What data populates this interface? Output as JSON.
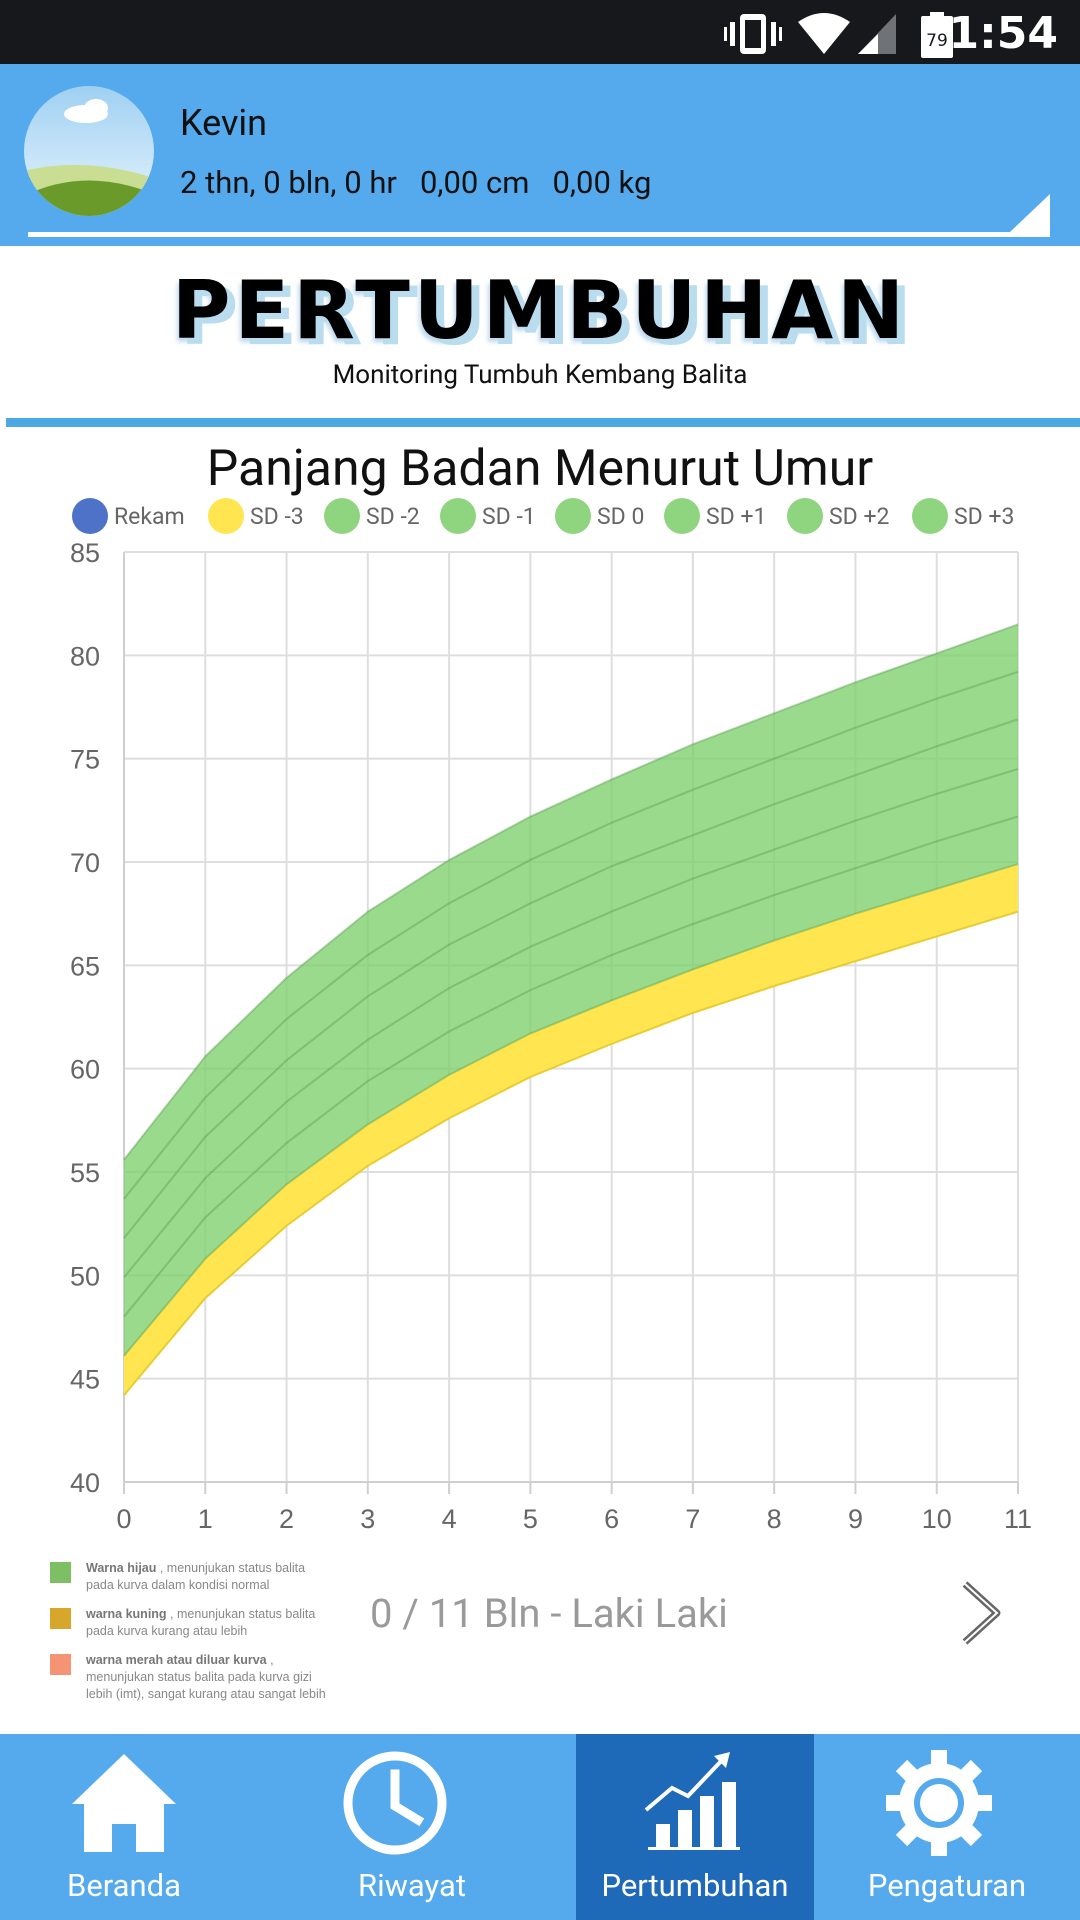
{
  "status_bar": {
    "time": "1:54",
    "battery": "79"
  },
  "profile": {
    "name": "Kevin",
    "stats": "2 thn, 0 bln, 0 hr   0,00 cm   0,00 kg"
  },
  "banner": {
    "title": "PERTUMBUHAN",
    "subtitle": "Monitoring Tumbuh Kembang Balita"
  },
  "colors": {
    "primary": "#54aaed",
    "active_nav": "#1f69b9",
    "band_green": "#7ccf6c",
    "band_yellow": "#ffe650",
    "rekam": "#4e72c8"
  },
  "chart_data": {
    "type": "area",
    "title": "Panjang Badan Menurut Umur",
    "xlabel": "",
    "ylabel": "",
    "x": [
      0,
      1,
      2,
      3,
      4,
      5,
      6,
      7,
      8,
      9,
      10,
      11
    ],
    "xlim": [
      0,
      11
    ],
    "ylim": [
      40,
      85
    ],
    "yticks": [
      40,
      45,
      50,
      55,
      60,
      65,
      70,
      75,
      80,
      85
    ],
    "grid": true,
    "legend_position": "top",
    "legend": [
      {
        "name": "Rekam",
        "color": "#4e72c8"
      },
      {
        "name": "SD -3",
        "color": "#ffe650"
      },
      {
        "name": "SD -2",
        "color": "#8fd47f"
      },
      {
        "name": "SD -1",
        "color": "#8fd47f"
      },
      {
        "name": "SD 0",
        "color": "#8fd47f"
      },
      {
        "name": "SD +1",
        "color": "#8fd47f"
      },
      {
        "name": "SD +2",
        "color": "#8fd47f"
      },
      {
        "name": "SD +3",
        "color": "#8fd47f"
      }
    ],
    "series": [
      {
        "name": "SD -3",
        "values": [
          44.2,
          48.9,
          52.4,
          55.3,
          57.6,
          59.6,
          61.2,
          62.7,
          64.0,
          65.2,
          66.4,
          67.6
        ]
      },
      {
        "name": "SD -2",
        "values": [
          46.1,
          50.8,
          54.4,
          57.3,
          59.7,
          61.7,
          63.3,
          64.8,
          66.2,
          67.5,
          68.7,
          69.9
        ]
      },
      {
        "name": "SD -1",
        "values": [
          48.0,
          52.8,
          56.4,
          59.4,
          61.8,
          63.8,
          65.5,
          67.0,
          68.4,
          69.7,
          71.0,
          72.2
        ]
      },
      {
        "name": "SD 0",
        "values": [
          49.9,
          54.7,
          58.4,
          61.4,
          63.9,
          65.9,
          67.6,
          69.2,
          70.6,
          72.0,
          73.3,
          74.5
        ]
      },
      {
        "name": "SD +1",
        "values": [
          51.8,
          56.7,
          60.4,
          63.5,
          66.0,
          68.0,
          69.8,
          71.3,
          72.8,
          74.2,
          75.6,
          76.9
        ]
      },
      {
        "name": "SD +2",
        "values": [
          53.7,
          58.6,
          62.4,
          65.5,
          68.0,
          70.1,
          71.9,
          73.5,
          75.0,
          76.5,
          77.9,
          79.2
        ]
      },
      {
        "name": "SD +3",
        "values": [
          55.6,
          60.6,
          64.4,
          67.6,
          70.1,
          72.2,
          74.0,
          75.7,
          77.2,
          78.7,
          80.1,
          81.5
        ]
      }
    ]
  },
  "notes": [
    {
      "bold": "Warna hijau",
      "text": " , menunjukan status balita pada kurva dalam kondisi normal",
      "color": "#7cc063"
    },
    {
      "bold": "warna kuning",
      "text": " , menunjukan status balita pada kurva kurang atau lebih",
      "color": "#d6a72a"
    },
    {
      "bold": "warna merah atau diluar kurva",
      "text": " , menunjukan status balita pada kurva gizi lebih (imt), sangat kurang atau sangat lebih",
      "color": "#f59375"
    }
  ],
  "pager": {
    "label": "0 / 11 Bln - Laki Laki"
  },
  "nav": {
    "home": "Beranda",
    "history": "Riwayat",
    "growth": "Pertumbuhan",
    "settings": "Pengaturan"
  }
}
